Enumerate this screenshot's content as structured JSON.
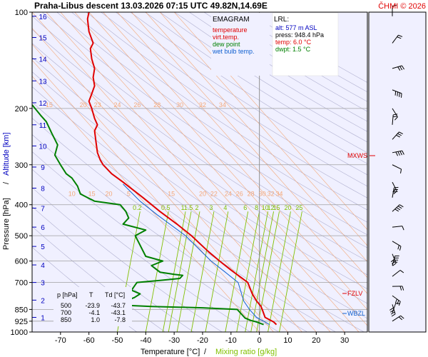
{
  "header": {
    "title": "Praha-Libus   descent   13.03.2026 07:15 UTC   49.82N,14.69E",
    "credit": "ČHMI © 2026"
  },
  "axes": {
    "ylabel_pressure": "Pressure [hPa]",
    "ylabel_sep": "/",
    "ylabel_altitude": "Altitude [km]",
    "xlabel_temp": "Temperature [°C]",
    "xlabel_sep": "/",
    "xlabel_mix": "Mixing ratio [g/kg]"
  },
  "legend": {
    "title": "EMAGRAM",
    "items": [
      {
        "label": "temperature",
        "color": "#e00000"
      },
      {
        "label": "virt.temp.",
        "color": "#e00000"
      },
      {
        "label": "dew point",
        "color": "#008000"
      },
      {
        "label": "wet bulb temp.",
        "color": "#1060d0"
      }
    ]
  },
  "lrl": {
    "title": "LRL:",
    "lines": [
      {
        "text": "alt: 577 m ASL",
        "color": "#0000c0"
      },
      {
        "text": "press: 948.4 hPa",
        "color": "#000000"
      },
      {
        "text": "temp: 6.0 °C",
        "color": "#e00000"
      },
      {
        "text": "dwpt: 1.5 °C",
        "color": "#008000"
      }
    ]
  },
  "table": {
    "header": [
      "p [hPa]",
      "T",
      "Td [°C]"
    ],
    "rows": [
      [
        "500",
        "-23.9",
        "-43.7"
      ],
      [
        "700",
        "-4.1",
        "-43.1"
      ],
      [
        "850",
        "1.0",
        "-7.8"
      ]
    ]
  },
  "markers": {
    "mxws": "MXWS",
    "fzlv": "FZLV",
    "wbzl": "WBZL"
  },
  "colors": {
    "plot_bg": "#f0f0ff",
    "temperature": "#e00000",
    "dewpoint": "#008000",
    "wetbulb": "#1060d0",
    "altitude": "#0000c0",
    "mixing": "#80c000",
    "isotherm": "#f4a878",
    "adiabat": "#b0b0d0"
  },
  "chart_data": {
    "type": "line",
    "title": "EMAGRAM",
    "xlabel": "Temperature [°C] / Mixing ratio [g/kg]",
    "ylabel": "Pressure [hPa] / Altitude [km]",
    "xlim": [
      -80,
      38
    ],
    "ylim": [
      1000,
      100
    ],
    "y_scale": "log",
    "grid": true,
    "legend_position": "top-center",
    "x_ticks": [
      -70,
      -60,
      -50,
      -40,
      -30,
      -20,
      -10,
      0,
      10,
      20,
      30
    ],
    "pressure_ticks": [
      100,
      200,
      300,
      400,
      500,
      600,
      700,
      850,
      925,
      1000
    ],
    "altitude_ticks_km": [
      1,
      2,
      3,
      4,
      5,
      6,
      7,
      8,
      9,
      10,
      11,
      12,
      13,
      14,
      15,
      16
    ],
    "altitude_pressure_hpa": [
      900,
      795,
      700,
      617,
      540,
      470,
      410,
      355,
      305,
      262,
      225,
      192,
      164,
      140,
      120,
      103
    ],
    "mixing_ratio_row1": {
      "pressure": 200,
      "labels": [
        "15",
        "20",
        "23",
        "24",
        "26",
        "28",
        "30",
        "32",
        "34"
      ],
      "x": [
        -74,
        -62,
        -57,
        -50,
        -43,
        -36,
        -28,
        -20,
        -13
      ]
    },
    "mixing_ratio_row2": {
      "pressure": 380,
      "labels": [
        "10",
        "15",
        "20",
        "5",
        "15",
        "20",
        "22",
        "24",
        "26",
        "28",
        "30",
        "32",
        "34"
      ],
      "x": [
        -66,
        -59,
        -53,
        -46,
        -31,
        -20,
        -16,
        -11,
        -7,
        -3,
        1,
        4,
        7
      ]
    },
    "mixing_ratio_row3": {
      "pressure": 420,
      "labels": [
        "0.2",
        "0.5",
        "1",
        "1.5",
        "2",
        "3",
        "4",
        "6",
        "8",
        "10",
        "12",
        "15",
        "20",
        "25"
      ],
      "x": [
        -43,
        -33,
        -27,
        -25,
        -22,
        -17,
        -12,
        -5,
        -1,
        2,
        4,
        6,
        10,
        14
      ]
    },
    "series": [
      {
        "name": "temperature",
        "points": [
          [
            6.0,
            948
          ],
          [
            5.0,
            930
          ],
          [
            3.5,
            915
          ],
          [
            2.0,
            900
          ],
          [
            1.0,
            850
          ],
          [
            0.5,
            830
          ],
          [
            -1.0,
            800
          ],
          [
            -2.5,
            760
          ],
          [
            -4.1,
            700
          ],
          [
            -7.0,
            670
          ],
          [
            -10.0,
            640
          ],
          [
            -14.0,
            600
          ],
          [
            -18.0,
            560
          ],
          [
            -23.9,
            500
          ],
          [
            -29.0,
            460
          ],
          [
            -35.0,
            420
          ],
          [
            -41.0,
            380
          ],
          [
            -48.0,
            340
          ],
          [
            -52.0,
            320
          ],
          [
            -55.0,
            300
          ],
          [
            -56.0,
            290
          ],
          [
            -57.0,
            275
          ],
          [
            -57.5,
            255
          ],
          [
            -58.0,
            235
          ],
          [
            -57.0,
            225
          ],
          [
            -58.0,
            215
          ],
          [
            -59.0,
            200
          ],
          [
            -60.0,
            190
          ],
          [
            -59.0,
            180
          ],
          [
            -58.0,
            170
          ],
          [
            -58.5,
            160
          ],
          [
            -58.0,
            150
          ],
          [
            -59.0,
            140
          ],
          [
            -59.5,
            130
          ],
          [
            -58.5,
            125
          ],
          [
            -60.0,
            115
          ],
          [
            -60.5,
            105
          ],
          [
            -60.0,
            100
          ]
        ]
      },
      {
        "name": "dew point",
        "points": [
          [
            1.5,
            948
          ],
          [
            -1.0,
            930
          ],
          [
            -3.0,
            920
          ],
          [
            -5.0,
            905
          ],
          [
            -7.8,
            850
          ],
          [
            -20.0,
            840
          ],
          [
            -38.0,
            832
          ],
          [
            -47.0,
            825
          ],
          [
            -47.0,
            800
          ],
          [
            -44.0,
            780
          ],
          [
            -42.0,
            760
          ],
          [
            -45.0,
            740
          ],
          [
            -43.1,
            700
          ],
          [
            -35.0,
            690
          ],
          [
            -28.0,
            680
          ],
          [
            -27.0,
            665
          ],
          [
            -30.0,
            660
          ],
          [
            -35.0,
            650
          ],
          [
            -38.0,
            620
          ],
          [
            -34.0,
            600
          ],
          [
            -40.0,
            580
          ],
          [
            -43.7,
            500
          ],
          [
            -40.0,
            480
          ],
          [
            -48.0,
            460
          ],
          [
            -46.0,
            440
          ],
          [
            -47.0,
            420
          ],
          [
            -49.0,
            400
          ],
          [
            -58.0,
            390
          ],
          [
            -63.0,
            370
          ],
          [
            -64.0,
            350
          ],
          [
            -66.0,
            330
          ],
          [
            -68.0,
            320
          ],
          [
            -70.0,
            300
          ],
          [
            -72.0,
            280
          ],
          [
            -71.0,
            260
          ],
          [
            -73.0,
            240
          ],
          [
            -75.0,
            220
          ],
          [
            -77.0,
            210
          ],
          [
            -80.0,
            195
          ]
        ]
      },
      {
        "name": "wet bulb temp.",
        "points": [
          [
            3.5,
            948
          ],
          [
            2.0,
            930
          ],
          [
            0.5,
            915
          ],
          [
            -1.0,
            900
          ],
          [
            -3.5,
            850
          ],
          [
            -5.5,
            800
          ],
          [
            -7.5,
            700
          ],
          [
            -12.0,
            650
          ],
          [
            -17.0,
            600
          ],
          [
            -26.0,
            500
          ],
          [
            -36.0,
            430
          ],
          [
            -42.0,
            390
          ],
          [
            -48.0,
            345
          ]
        ]
      }
    ]
  }
}
